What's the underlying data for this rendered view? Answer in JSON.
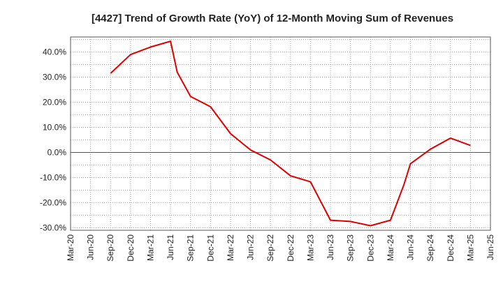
{
  "chart_data": {
    "type": "line",
    "title": "[4427]  Trend of Growth Rate (YoY) of 12-Month Moving Sum of Revenues",
    "xlabel": "",
    "ylabel": "",
    "x_ticks": [
      "Mar-20",
      "Jun-20",
      "Sep-20",
      "Dec-20",
      "Mar-21",
      "Jun-21",
      "Sep-21",
      "Dec-21",
      "Mar-22",
      "Jun-22",
      "Sep-22",
      "Dec-22",
      "Mar-23",
      "Jun-23",
      "Sep-23",
      "Dec-23",
      "Mar-24",
      "Jun-24",
      "Sep-24",
      "Dec-24",
      "Mar-25",
      "Jun-25"
    ],
    "y_ticks": [
      "40.0%",
      "30.0%",
      "20.0%",
      "10.0%",
      "0.0%",
      "-10.0%",
      "-20.0%",
      "-30.0%"
    ],
    "y_tick_values": [
      40,
      30,
      20,
      10,
      0,
      -10,
      -20,
      -30
    ],
    "ylim": [
      -31,
      46
    ],
    "grid": true,
    "series": [
      {
        "color": "#dd0000",
        "points": [
          {
            "x": "Sep-20",
            "y": 31.5
          },
          {
            "x": "Dec-20",
            "y": 39.0
          },
          {
            "x": "Mar-21",
            "y": 42.0
          },
          {
            "x": "Jun-21",
            "y": 44.3
          },
          {
            "x": "Jul-21",
            "y": 32.0
          },
          {
            "x": "Sep-21",
            "y": 22.3
          },
          {
            "x": "Dec-21",
            "y": 18.2
          },
          {
            "x": "Mar-22",
            "y": 7.5
          },
          {
            "x": "Jun-22",
            "y": 1.0
          },
          {
            "x": "Sep-22",
            "y": -3.0
          },
          {
            "x": "Dec-22",
            "y": -9.3
          },
          {
            "x": "Mar-23",
            "y": -11.7
          },
          {
            "x": "Jun-23",
            "y": -27.0
          },
          {
            "x": "Sep-23",
            "y": -27.5
          },
          {
            "x": "Dec-23",
            "y": -29.2
          },
          {
            "x": "Mar-24",
            "y": -27.0
          },
          {
            "x": "May-24",
            "y": -13.0
          },
          {
            "x": "Jun-24",
            "y": -4.5
          },
          {
            "x": "Sep-24",
            "y": 1.3
          },
          {
            "x": "Dec-24",
            "y": 5.7
          },
          {
            "x": "Mar-25",
            "y": 2.8
          }
        ]
      }
    ]
  }
}
